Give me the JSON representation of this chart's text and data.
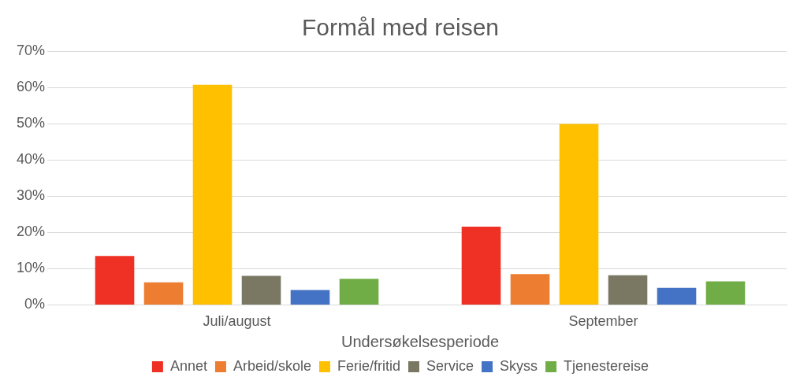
{
  "chart_data": {
    "type": "bar",
    "title": "Formål med reisen",
    "xlabel": "Undersøkelsesperiode",
    "categories": [
      "Juli/august",
      "September"
    ],
    "series": [
      {
        "name": "Annet",
        "color": "#ee3124",
        "values": [
          13.5,
          21.6
        ]
      },
      {
        "name": "Arbeid/skole",
        "color": "#ed7d31",
        "values": [
          6.2,
          8.5
        ]
      },
      {
        "name": "Ferie/fritid",
        "color": "#ffc000",
        "values": [
          60.7,
          49.9
        ]
      },
      {
        "name": "Service",
        "color": "#7a7862",
        "values": [
          8.0,
          8.2
        ]
      },
      {
        "name": "Skyss",
        "color": "#4472c4",
        "values": [
          4.1,
          4.7
        ]
      },
      {
        "name": "Tjenestereise",
        "color": "#70ad47",
        "values": [
          7.2,
          6.5
        ]
      }
    ],
    "ylim": [
      0,
      70
    ],
    "yticks": [
      {
        "value": 0,
        "label": "0%"
      },
      {
        "value": 10,
        "label": "10%"
      },
      {
        "value": 20,
        "label": "20%"
      },
      {
        "value": 30,
        "label": "30%"
      },
      {
        "value": 40,
        "label": "40%"
      },
      {
        "value": 50,
        "label": "50%"
      },
      {
        "value": 60,
        "label": "60%"
      },
      {
        "value": 70,
        "label": "70%"
      }
    ],
    "grid": "y",
    "legend": "bottom"
  }
}
